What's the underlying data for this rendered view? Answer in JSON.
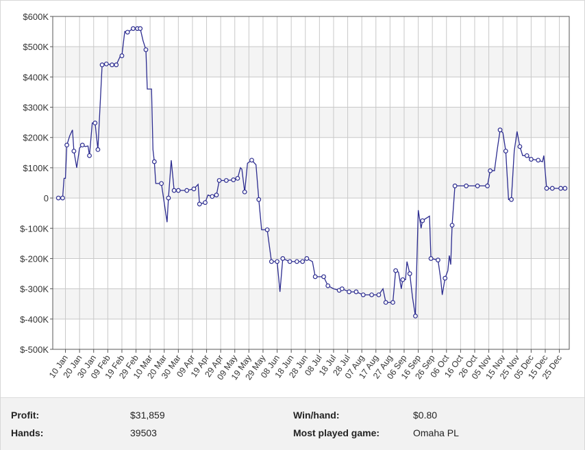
{
  "chart_data": {
    "type": "line",
    "title": "",
    "xlabel": "",
    "ylabel": "",
    "ylim": [
      -500000,
      600000
    ],
    "y_ticks": [
      "$600K",
      "$500K",
      "$400K",
      "$300K",
      "$200K",
      "$100K",
      "0",
      "$-100K",
      "$-200K",
      "$-300K",
      "$-400K",
      "$-500K"
    ],
    "x_ticks": [
      "10 Jan",
      "20 Jan",
      "30 Jan",
      "09 Feb",
      "19 Feb",
      "29 Feb",
      "10 Mar",
      "20 Mar",
      "30 Mar",
      "09 Apr",
      "19 Apr",
      "29 Apr",
      "09 May",
      "19 May",
      "29 May",
      "08 Jun",
      "18 Jun",
      "28 Jun",
      "08 Jul",
      "18 Jul",
      "28 Jul",
      "07 Aug",
      "17 Aug",
      "27 Aug",
      "06 Sep",
      "16 Sep",
      "26 Sep",
      "06 Oct",
      "16 Oct",
      "26 Oct",
      "05 Nov",
      "15 Nov",
      "25 Nov",
      "05 Dec",
      "15 Dec",
      "25 Dec"
    ],
    "grid": true,
    "line_color": "#2b2b8f",
    "series": [
      {
        "values": [
          {
            "x": "2016-01-05",
            "y": 0
          },
          {
            "x": "2016-01-08",
            "y": 0
          },
          {
            "x": "2016-01-09",
            "y": 65000
          },
          {
            "x": "2016-01-10",
            "y": 65000
          },
          {
            "x": "2016-01-11",
            "y": 175000
          },
          {
            "x": "2016-01-13",
            "y": 205000
          },
          {
            "x": "2016-01-15",
            "y": 225000
          },
          {
            "x": "2016-01-16",
            "y": 155000
          },
          {
            "x": "2016-01-18",
            "y": 100000
          },
          {
            "x": "2016-01-20",
            "y": 165000
          },
          {
            "x": "2016-01-22",
            "y": 175000
          },
          {
            "x": "2016-01-24",
            "y": 170000
          },
          {
            "x": "2016-01-26",
            "y": 172000
          },
          {
            "x": "2016-01-27",
            "y": 140000
          },
          {
            "x": "2016-01-29",
            "y": 248000
          },
          {
            "x": "2016-01-31",
            "y": 248000
          },
          {
            "x": "2016-02-02",
            "y": 160000
          },
          {
            "x": "2016-02-05",
            "y": 440000
          },
          {
            "x": "2016-02-08",
            "y": 443000
          },
          {
            "x": "2016-02-12",
            "y": 440000
          },
          {
            "x": "2016-02-15",
            "y": 440000
          },
          {
            "x": "2016-02-18",
            "y": 470000
          },
          {
            "x": "2016-02-19",
            "y": 470000
          },
          {
            "x": "2016-02-21",
            "y": 550000
          },
          {
            "x": "2016-02-23",
            "y": 548000
          },
          {
            "x": "2016-02-27",
            "y": 560000
          },
          {
            "x": "2016-03-01",
            "y": 560000
          },
          {
            "x": "2016-03-03",
            "y": 560000
          },
          {
            "x": "2016-03-05",
            "y": 520000
          },
          {
            "x": "2016-03-07",
            "y": 490000
          },
          {
            "x": "2016-03-08",
            "y": 360000
          },
          {
            "x": "2016-03-11",
            "y": 360000
          },
          {
            "x": "2016-03-12",
            "y": 160000
          },
          {
            "x": "2016-03-13",
            "y": 120000
          },
          {
            "x": "2016-03-14",
            "y": 48000
          },
          {
            "x": "2016-03-18",
            "y": 48000
          },
          {
            "x": "2016-03-22",
            "y": -80000
          },
          {
            "x": "2016-03-23",
            "y": 0
          },
          {
            "x": "2016-03-25",
            "y": 125000
          },
          {
            "x": "2016-03-27",
            "y": 25000
          },
          {
            "x": "2016-03-30",
            "y": 25000
          },
          {
            "x": "2016-04-05",
            "y": 25000
          },
          {
            "x": "2016-04-10",
            "y": 30000
          },
          {
            "x": "2016-04-13",
            "y": 45000
          },
          {
            "x": "2016-04-14",
            "y": -20000
          },
          {
            "x": "2016-04-18",
            "y": -15000
          },
          {
            "x": "2016-04-20",
            "y": 10000
          },
          {
            "x": "2016-04-23",
            "y": 5000
          },
          {
            "x": "2016-04-26",
            "y": 10000
          },
          {
            "x": "2016-04-28",
            "y": 58000
          },
          {
            "x": "2016-05-03",
            "y": 58000
          },
          {
            "x": "2016-05-08",
            "y": 60000
          },
          {
            "x": "2016-05-11",
            "y": 65000
          },
          {
            "x": "2016-05-13",
            "y": 100000
          },
          {
            "x": "2016-05-14",
            "y": 95000
          },
          {
            "x": "2016-05-16",
            "y": 20000
          },
          {
            "x": "2016-05-18",
            "y": 115000
          },
          {
            "x": "2016-05-21",
            "y": 125000
          },
          {
            "x": "2016-05-24",
            "y": 110000
          },
          {
            "x": "2016-05-26",
            "y": -5000
          },
          {
            "x": "2016-05-28",
            "y": -105000
          },
          {
            "x": "2016-06-01",
            "y": -105000
          },
          {
            "x": "2016-06-04",
            "y": -210000
          },
          {
            "x": "2016-06-08",
            "y": -210000
          },
          {
            "x": "2016-06-10",
            "y": -310000
          },
          {
            "x": "2016-06-12",
            "y": -200000
          },
          {
            "x": "2016-06-17",
            "y": -210000
          },
          {
            "x": "2016-06-22",
            "y": -210000
          },
          {
            "x": "2016-06-26",
            "y": -210000
          },
          {
            "x": "2016-06-29",
            "y": -200000
          },
          {
            "x": "2016-07-03",
            "y": -210000
          },
          {
            "x": "2016-07-05",
            "y": -260000
          },
          {
            "x": "2016-07-11",
            "y": -260000
          },
          {
            "x": "2016-07-14",
            "y": -290000
          },
          {
            "x": "2016-07-18",
            "y": -300000
          },
          {
            "x": "2016-07-22",
            "y": -305000
          },
          {
            "x": "2016-07-24",
            "y": -300000
          },
          {
            "x": "2016-07-29",
            "y": -310000
          },
          {
            "x": "2016-08-03",
            "y": -310000
          },
          {
            "x": "2016-08-08",
            "y": -320000
          },
          {
            "x": "2016-08-14",
            "y": -320000
          },
          {
            "x": "2016-08-19",
            "y": -320000
          },
          {
            "x": "2016-08-22",
            "y": -300000
          },
          {
            "x": "2016-08-24",
            "y": -345000
          },
          {
            "x": "2016-08-29",
            "y": -345000
          },
          {
            "x": "2016-08-31",
            "y": -240000
          },
          {
            "x": "2016-09-02",
            "y": -245000
          },
          {
            "x": "2016-09-04",
            "y": -300000
          },
          {
            "x": "2016-09-05",
            "y": -270000
          },
          {
            "x": "2016-09-07",
            "y": -270000
          },
          {
            "x": "2016-09-08",
            "y": -210000
          },
          {
            "x": "2016-09-10",
            "y": -250000
          },
          {
            "x": "2016-09-12",
            "y": -330000
          },
          {
            "x": "2016-09-14",
            "y": -390000
          },
          {
            "x": "2016-09-16",
            "y": -40000
          },
          {
            "x": "2016-09-18",
            "y": -100000
          },
          {
            "x": "2016-09-19",
            "y": -75000
          },
          {
            "x": "2016-09-24",
            "y": -60000
          },
          {
            "x": "2016-09-25",
            "y": -200000
          },
          {
            "x": "2016-09-30",
            "y": -205000
          },
          {
            "x": "2016-10-02",
            "y": -270000
          },
          {
            "x": "2016-10-03",
            "y": -320000
          },
          {
            "x": "2016-10-05",
            "y": -265000
          },
          {
            "x": "2016-10-07",
            "y": -240000
          },
          {
            "x": "2016-10-08",
            "y": -190000
          },
          {
            "x": "2016-10-09",
            "y": -220000
          },
          {
            "x": "2016-10-10",
            "y": -90000
          },
          {
            "x": "2016-10-12",
            "y": 40000
          },
          {
            "x": "2016-10-20",
            "y": 40000
          },
          {
            "x": "2016-10-28",
            "y": 40000
          },
          {
            "x": "2016-11-04",
            "y": 40000
          },
          {
            "x": "2016-11-06",
            "y": 90000
          },
          {
            "x": "2016-11-09",
            "y": 90000
          },
          {
            "x": "2016-11-11",
            "y": 160000
          },
          {
            "x": "2016-11-13",
            "y": 225000
          },
          {
            "x": "2016-11-15",
            "y": 215000
          },
          {
            "x": "2016-11-17",
            "y": 155000
          },
          {
            "x": "2016-11-19",
            "y": -5000
          },
          {
            "x": "2016-11-21",
            "y": -5000
          },
          {
            "x": "2016-11-23",
            "y": 155000
          },
          {
            "x": "2016-11-25",
            "y": 220000
          },
          {
            "x": "2016-11-27",
            "y": 170000
          },
          {
            "x": "2016-11-29",
            "y": 140000
          },
          {
            "x": "2016-12-02",
            "y": 140000
          },
          {
            "x": "2016-12-05",
            "y": 128000
          },
          {
            "x": "2016-12-10",
            "y": 125000
          },
          {
            "x": "2016-12-13",
            "y": 120000
          },
          {
            "x": "2016-12-14",
            "y": 140000
          },
          {
            "x": "2016-12-16",
            "y": 32000
          },
          {
            "x": "2016-12-20",
            "y": 32000
          },
          {
            "x": "2016-12-26",
            "y": 32000
          },
          {
            "x": "2016-12-29",
            "y": 32000
          }
        ]
      }
    ],
    "markers": [
      "2016-01-05",
      "2016-01-08",
      "2016-01-11",
      "2016-01-16",
      "2016-01-22",
      "2016-01-27",
      "2016-01-31",
      "2016-02-02",
      "2016-02-05",
      "2016-02-08",
      "2016-02-12",
      "2016-02-15",
      "2016-02-19",
      "2016-02-23",
      "2016-02-27",
      "2016-03-01",
      "2016-03-03",
      "2016-03-07",
      "2016-03-13",
      "2016-03-18",
      "2016-03-23",
      "2016-03-27",
      "2016-03-30",
      "2016-04-05",
      "2016-04-10",
      "2016-04-14",
      "2016-04-18",
      "2016-04-23",
      "2016-04-26",
      "2016-04-28",
      "2016-05-03",
      "2016-05-08",
      "2016-05-11",
      "2016-05-16",
      "2016-05-21",
      "2016-05-26",
      "2016-06-01",
      "2016-06-04",
      "2016-06-08",
      "2016-06-12",
      "2016-06-17",
      "2016-06-22",
      "2016-06-26",
      "2016-06-29",
      "2016-07-05",
      "2016-07-11",
      "2016-07-14",
      "2016-07-22",
      "2016-07-24",
      "2016-07-29",
      "2016-08-03",
      "2016-08-08",
      "2016-08-14",
      "2016-08-19",
      "2016-08-24",
      "2016-08-29",
      "2016-08-31",
      "2016-09-05",
      "2016-09-10",
      "2016-09-14",
      "2016-09-19",
      "2016-09-25",
      "2016-09-30",
      "2016-10-05",
      "2016-10-10",
      "2016-10-12",
      "2016-10-20",
      "2016-10-28",
      "2016-11-04",
      "2016-11-06",
      "2016-11-13",
      "2016-11-17",
      "2016-11-21",
      "2016-11-27",
      "2016-12-02",
      "2016-12-05",
      "2016-12-10",
      "2016-12-16",
      "2016-12-20",
      "2016-12-26",
      "2016-12-29"
    ]
  },
  "stats": {
    "profit_label": "Profit:",
    "profit_value": "$31,859",
    "hands_label": "Hands:",
    "hands_value": "39503",
    "winhand_label": "Win/hand:",
    "winhand_value": "$0.80",
    "game_label": "Most played game:",
    "game_value": "Omaha PL"
  }
}
